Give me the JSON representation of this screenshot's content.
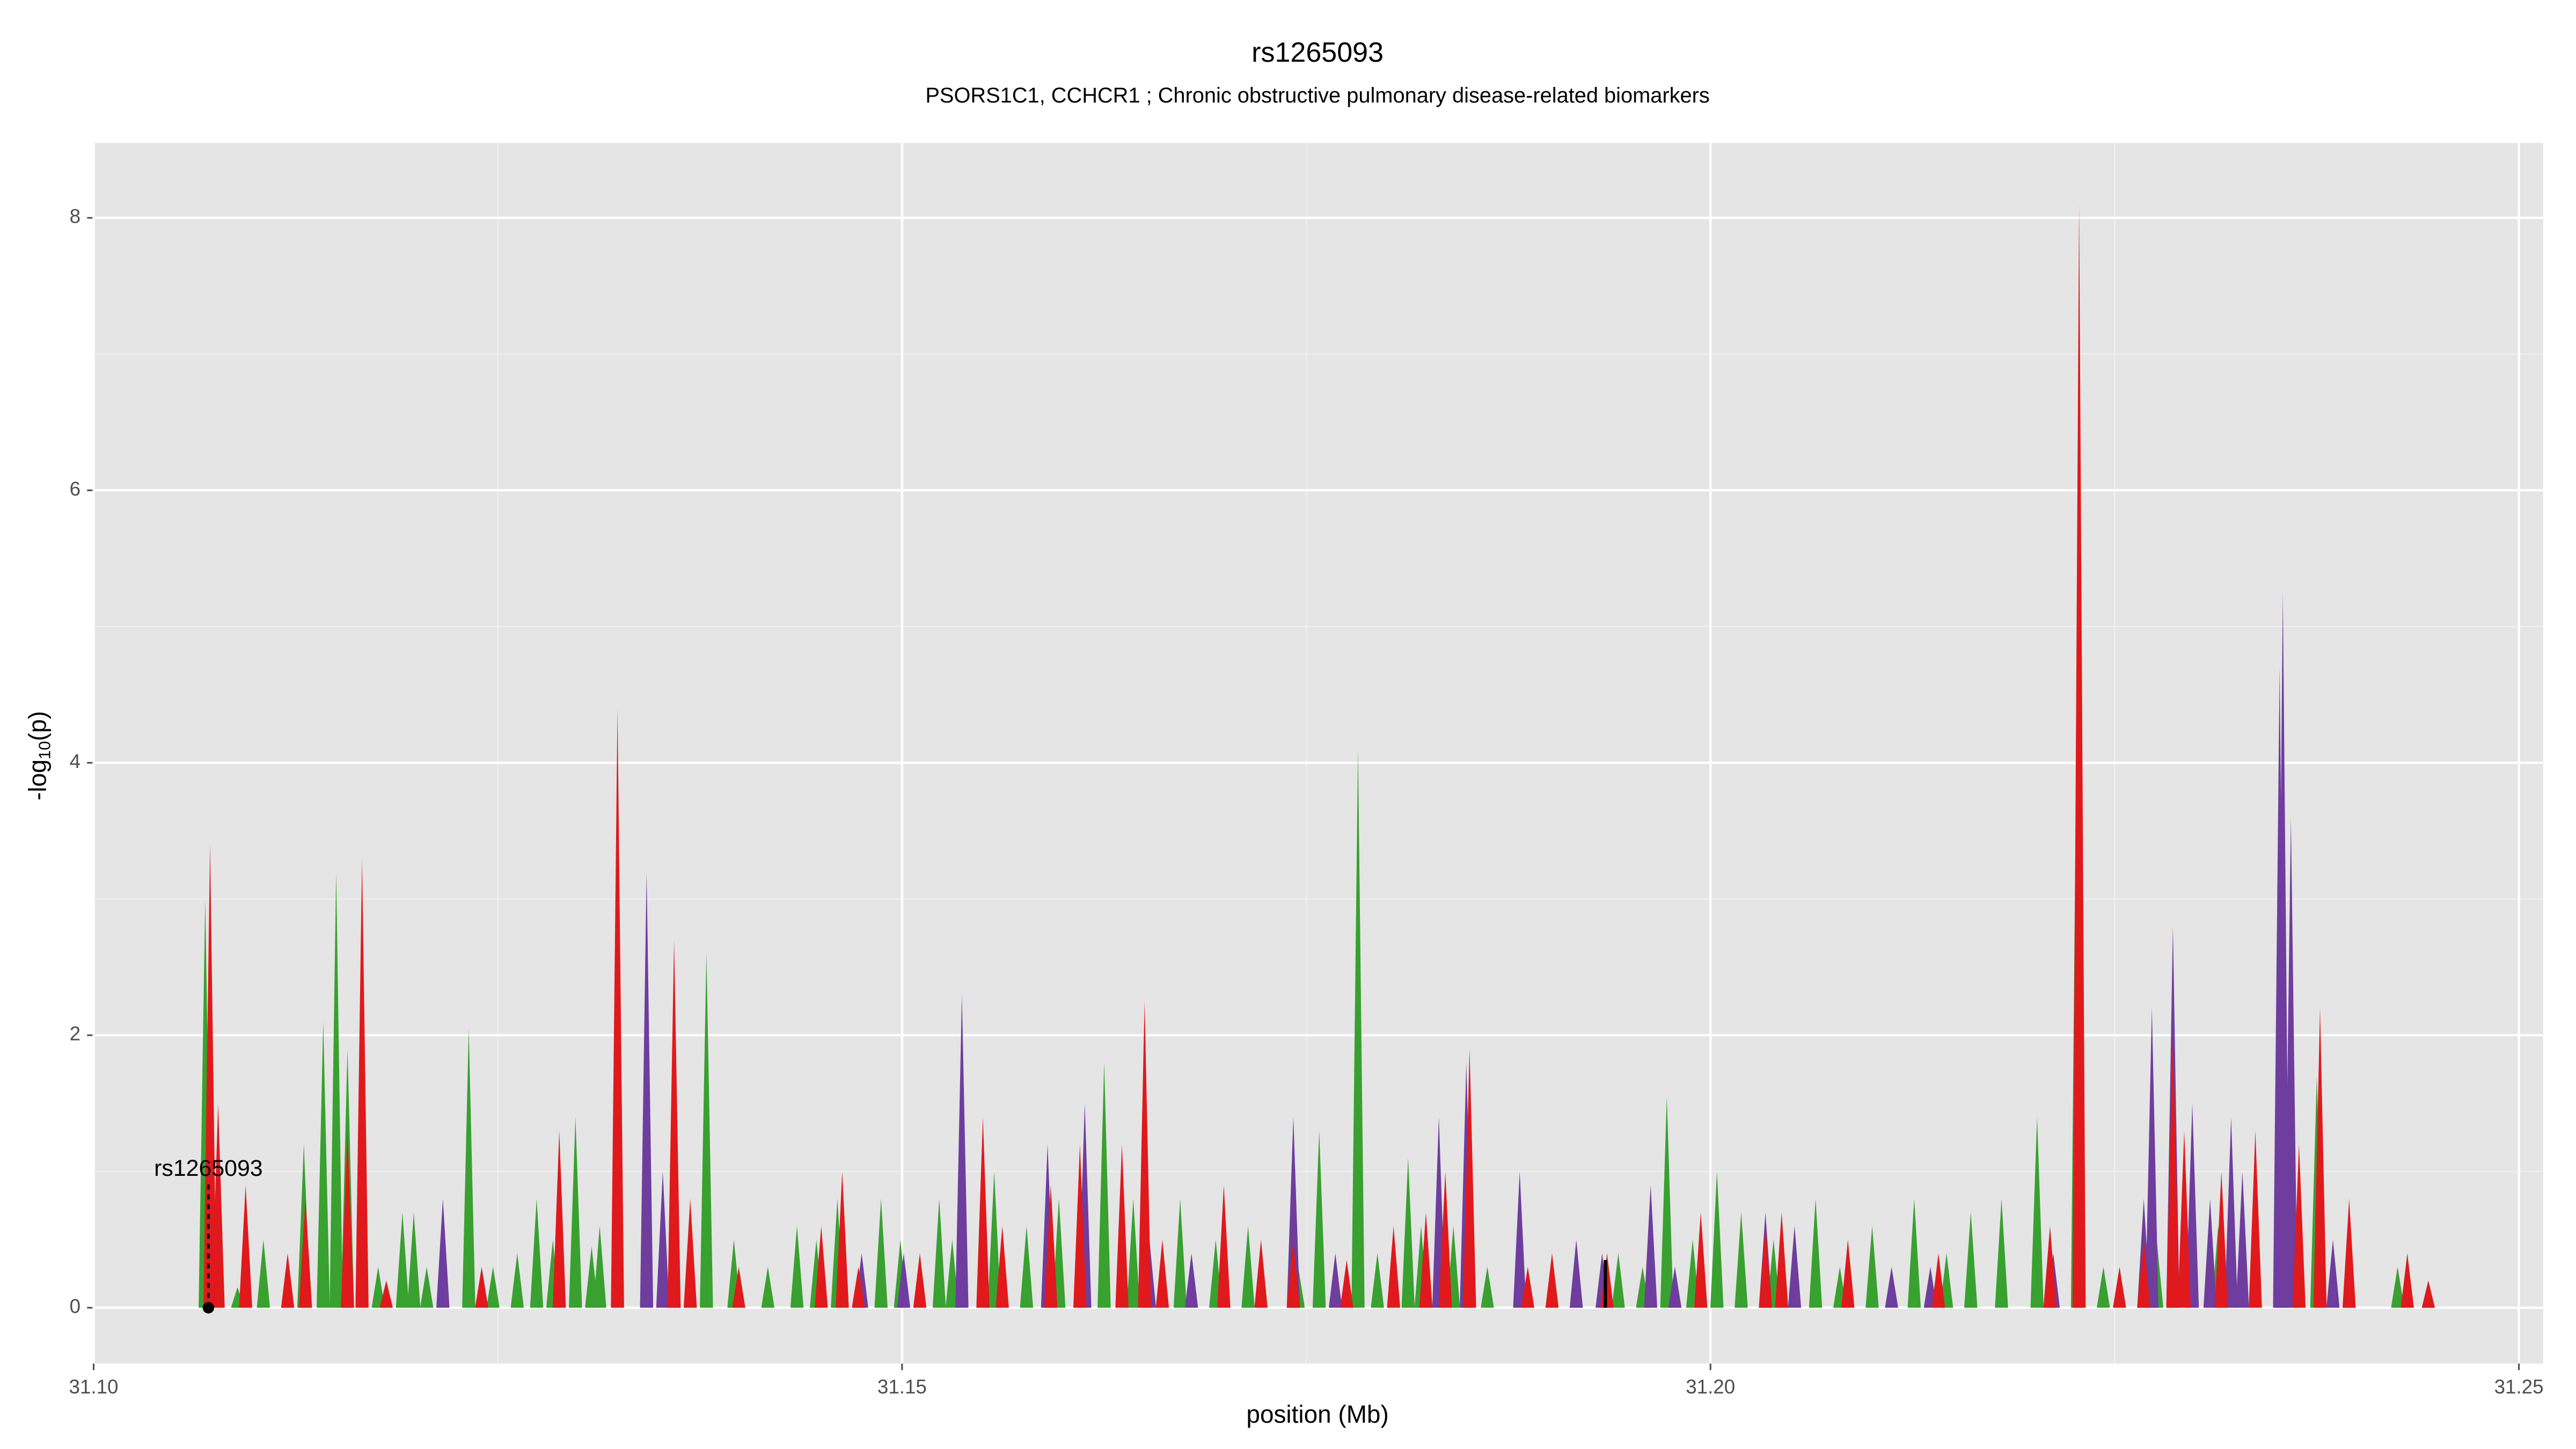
{
  "chart_data": {
    "type": "area",
    "title": "rs1265093",
    "subtitle": "PSORS1C1, CCHCR1 ; Chronic obstructive pulmonary disease-related biomarkers",
    "xlabel": "position (Mb)",
    "ylabel": [
      "-log",
      "10",
      "(p)"
    ],
    "xlim": [
      31.1,
      31.2515
    ],
    "ylim": [
      -0.41,
      8.55
    ],
    "xticks": [
      {
        "value": 31.1,
        "label": "31.10"
      },
      {
        "value": 31.15,
        "label": "31.15"
      },
      {
        "value": 31.2,
        "label": "31.20"
      },
      {
        "value": 31.25,
        "label": "31.25"
      }
    ],
    "yticks": [
      0,
      2,
      4,
      6,
      8
    ],
    "grid": true,
    "series": [
      {
        "color": "#38a12f",
        "x": [
          31.1069,
          31.1089,
          31.1105,
          31.112,
          31.113,
          31.1142,
          31.115,
          31.1157,
          31.1176,
          31.1191,
          31.1198,
          31.1206,
          31.1232,
          31.1247,
          31.1262,
          31.1274,
          31.1284,
          31.1298,
          31.1308,
          31.1313,
          31.1379,
          31.1396,
          31.1417,
          31.1435,
          31.1447,
          31.146,
          31.1487,
          31.1499,
          31.1523,
          31.1531,
          31.1557,
          31.1577,
          31.1597,
          31.1625,
          31.1643,
          31.1672,
          31.1694,
          31.1714,
          31.1745,
          31.1758,
          31.1782,
          31.1794,
          31.1813,
          31.1821,
          31.1841,
          31.1862,
          31.1917,
          31.1943,
          31.1958,
          31.1973,
          31.1989,
          31.2004,
          31.2019,
          31.2039,
          31.2065,
          31.208,
          31.21,
          31.2126,
          31.2146,
          31.2161,
          31.218,
          31.2202,
          31.2227,
          31.2243,
          31.2276,
          31.2314,
          31.2375,
          31.2395,
          31.2425
        ],
        "values": [
          3.0,
          0.15,
          0.5,
          0.3,
          1.2,
          2.1,
          3.2,
          1.9,
          0.3,
          0.7,
          0.7,
          0.3,
          2.05,
          0.3,
          0.4,
          0.8,
          0.5,
          1.4,
          0.45,
          0.6,
          2.6,
          0.5,
          0.3,
          0.6,
          0.5,
          0.8,
          0.8,
          0.5,
          0.8,
          0.5,
          1.0,
          0.6,
          0.8,
          1.8,
          0.8,
          0.8,
          0.5,
          0.6,
          0.3,
          1.3,
          4.1,
          0.4,
          1.1,
          0.6,
          0.6,
          0.3,
          0.4,
          0.4,
          0.3,
          1.55,
          0.5,
          1.0,
          0.7,
          0.5,
          0.8,
          0.3,
          0.6,
          0.8,
          0.4,
          0.7,
          0.8,
          1.4,
          5.0,
          0.3,
          0.5,
          0.6,
          1.7,
          0.4,
          0.3
        ]
      },
      {
        "color": "#6e3d9e",
        "x": [
          31.1216,
          31.1342,
          31.1352,
          31.1359,
          31.1475,
          31.1501,
          31.1537,
          31.159,
          31.1613,
          31.1653,
          31.1679,
          31.1742,
          31.1768,
          31.1832,
          31.1849,
          31.1882,
          31.1917,
          31.1933,
          31.1963,
          31.1978,
          31.2034,
          31.2052,
          31.2112,
          31.2136,
          31.2212,
          31.2268,
          31.2273,
          31.2286,
          31.2298,
          31.2309,
          31.2322,
          31.2329,
          31.2352,
          31.2354,
          31.2359,
          31.2385,
          31.2444
        ],
        "values": [
          0.8,
          3.2,
          1.0,
          1.2,
          0.4,
          0.4,
          2.3,
          1.2,
          1.5,
          0.5,
          0.4,
          1.4,
          0.4,
          1.4,
          1.8,
          1.0,
          0.5,
          0.4,
          0.9,
          0.3,
          0.7,
          0.6,
          0.3,
          0.3,
          0.4,
          0.8,
          2.2,
          2.8,
          1.5,
          0.8,
          1.4,
          1.0,
          4.7,
          5.25,
          3.6,
          0.5,
          0.1
        ]
      },
      {
        "color": "#e0191c",
        "x": [
          31.1072,
          31.1077,
          31.1094,
          31.112,
          31.1131,
          31.1157,
          31.1166,
          31.1181,
          31.124,
          31.1288,
          31.1324,
          31.1359,
          31.1369,
          31.1399,
          31.145,
          31.1463,
          31.1473,
          31.1511,
          31.155,
          31.1562,
          31.1592,
          31.161,
          31.1636,
          31.165,
          31.1661,
          31.1699,
          31.1722,
          31.1742,
          31.1775,
          31.1804,
          31.1824,
          31.1836,
          31.1851,
          31.1887,
          31.1902,
          31.1936,
          31.1994,
          31.2034,
          31.2044,
          31.2085,
          31.2141,
          31.221,
          31.2228,
          31.2253,
          31.2268,
          31.2286,
          31.2293,
          31.2316,
          31.2337,
          31.2364,
          31.2377,
          31.2395,
          31.2431,
          31.2444
        ],
        "values": [
          3.4,
          1.5,
          0.9,
          0.4,
          0.8,
          1.3,
          3.3,
          0.2,
          0.3,
          1.3,
          4.4,
          2.7,
          0.8,
          0.3,
          0.6,
          1.0,
          0.3,
          0.4,
          1.4,
          0.6,
          0.9,
          1.2,
          1.2,
          2.25,
          0.5,
          0.9,
          0.5,
          0.5,
          0.35,
          0.6,
          0.7,
          1.0,
          1.9,
          0.3,
          0.4,
          0.4,
          0.7,
          0.6,
          0.7,
          0.5,
          0.4,
          0.6,
          8.1,
          0.3,
          0.5,
          2.0,
          1.3,
          1.0,
          1.3,
          1.2,
          2.2,
          0.8,
          0.4,
          0.2
        ]
      }
    ],
    "annotation": {
      "text": "rs1265093",
      "x": 31.1071,
      "y": 0
    },
    "marker": {
      "x": 31.1935,
      "value": 0.35
    }
  }
}
